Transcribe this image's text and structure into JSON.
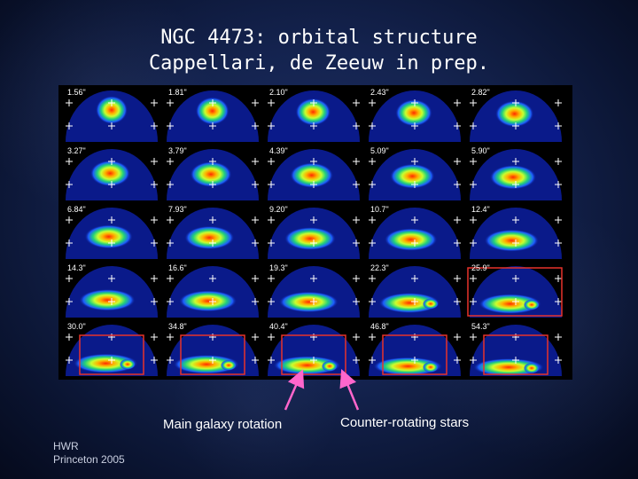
{
  "slide": {
    "title_line1": "NGC 4473: orbital structure",
    "title_line2": "Cappellari, de Zeeuw in prep.",
    "annotation_left": "Main galaxy rotation",
    "annotation_right": "Counter-rotating stars",
    "footer_line1": "HWR",
    "footer_line2": "Princeton  2005",
    "arrow_color": "#ff66cc",
    "box_color": "#e8322a"
  },
  "panels": [
    {
      "label": "1.56\"",
      "highlight": false
    },
    {
      "label": "1.81\"",
      "highlight": false
    },
    {
      "label": "2.10\"",
      "highlight": false
    },
    {
      "label": "2.43\"",
      "highlight": false
    },
    {
      "label": "2.82\"",
      "highlight": false
    },
    {
      "label": "3.27\"",
      "highlight": false
    },
    {
      "label": "3.79\"",
      "highlight": false
    },
    {
      "label": "4.39\"",
      "highlight": false
    },
    {
      "label": "5.09\"",
      "highlight": false
    },
    {
      "label": "5.90\"",
      "highlight": false
    },
    {
      "label": "6.84\"",
      "highlight": false
    },
    {
      "label": "7.93\"",
      "highlight": false
    },
    {
      "label": "9.20\"",
      "highlight": false
    },
    {
      "label": "10.7\"",
      "highlight": false
    },
    {
      "label": "12.4\"",
      "highlight": false
    },
    {
      "label": "14.3\"",
      "highlight": false
    },
    {
      "label": "16.6\"",
      "highlight": false
    },
    {
      "label": "19.3\"",
      "highlight": false
    },
    {
      "label": "22.3\"",
      "highlight": false
    },
    {
      "label": "25.9\"",
      "highlight": true
    },
    {
      "label": "30.0\"",
      "highlight": true
    },
    {
      "label": "34.8\"",
      "highlight": true
    },
    {
      "label": "40.4\"",
      "highlight": true
    },
    {
      "label": "46.8\"",
      "highlight": true
    },
    {
      "label": "54.3\"",
      "highlight": true
    }
  ]
}
